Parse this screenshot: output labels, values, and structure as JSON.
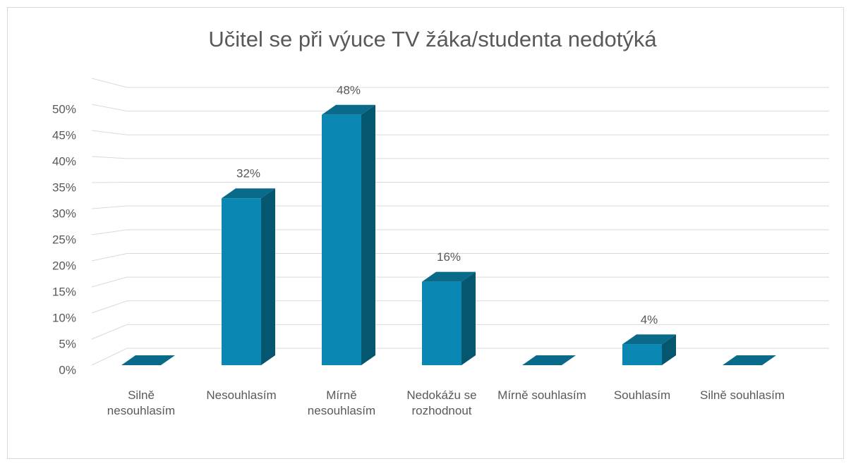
{
  "chart_data": {
    "type": "bar3d",
    "title": "Učitel se při výuce TV žáka/studenta nedotýká",
    "categories": [
      "Silně nesouhlasím",
      "Nesouhlasím",
      "Mírně nesouhlasím",
      "Nedokážu se rozhodnout",
      "Mírně souhlasím",
      "Souhlasím",
      "Silně souhlasím"
    ],
    "values": [
      0,
      32,
      48,
      16,
      0,
      4,
      0
    ],
    "value_labels": [
      null,
      "32%",
      "48%",
      "16%",
      null,
      "4%",
      null
    ],
    "color": "#0a88b3",
    "ylim": [
      0,
      55
    ],
    "yticks": [
      {
        "value": 0,
        "label": "0%"
      },
      {
        "value": 5,
        "label": "5%"
      },
      {
        "value": 10,
        "label": "10%"
      },
      {
        "value": 15,
        "label": "15%"
      },
      {
        "value": 20,
        "label": "20%"
      },
      {
        "value": 25,
        "label": "25%"
      },
      {
        "value": 30,
        "label": "30%"
      },
      {
        "value": 35,
        "label": "35%"
      },
      {
        "value": 40,
        "label": "40%"
      },
      {
        "value": 45,
        "label": "45%"
      },
      {
        "value": 50,
        "label": "50%"
      }
    ],
    "grid": true
  }
}
